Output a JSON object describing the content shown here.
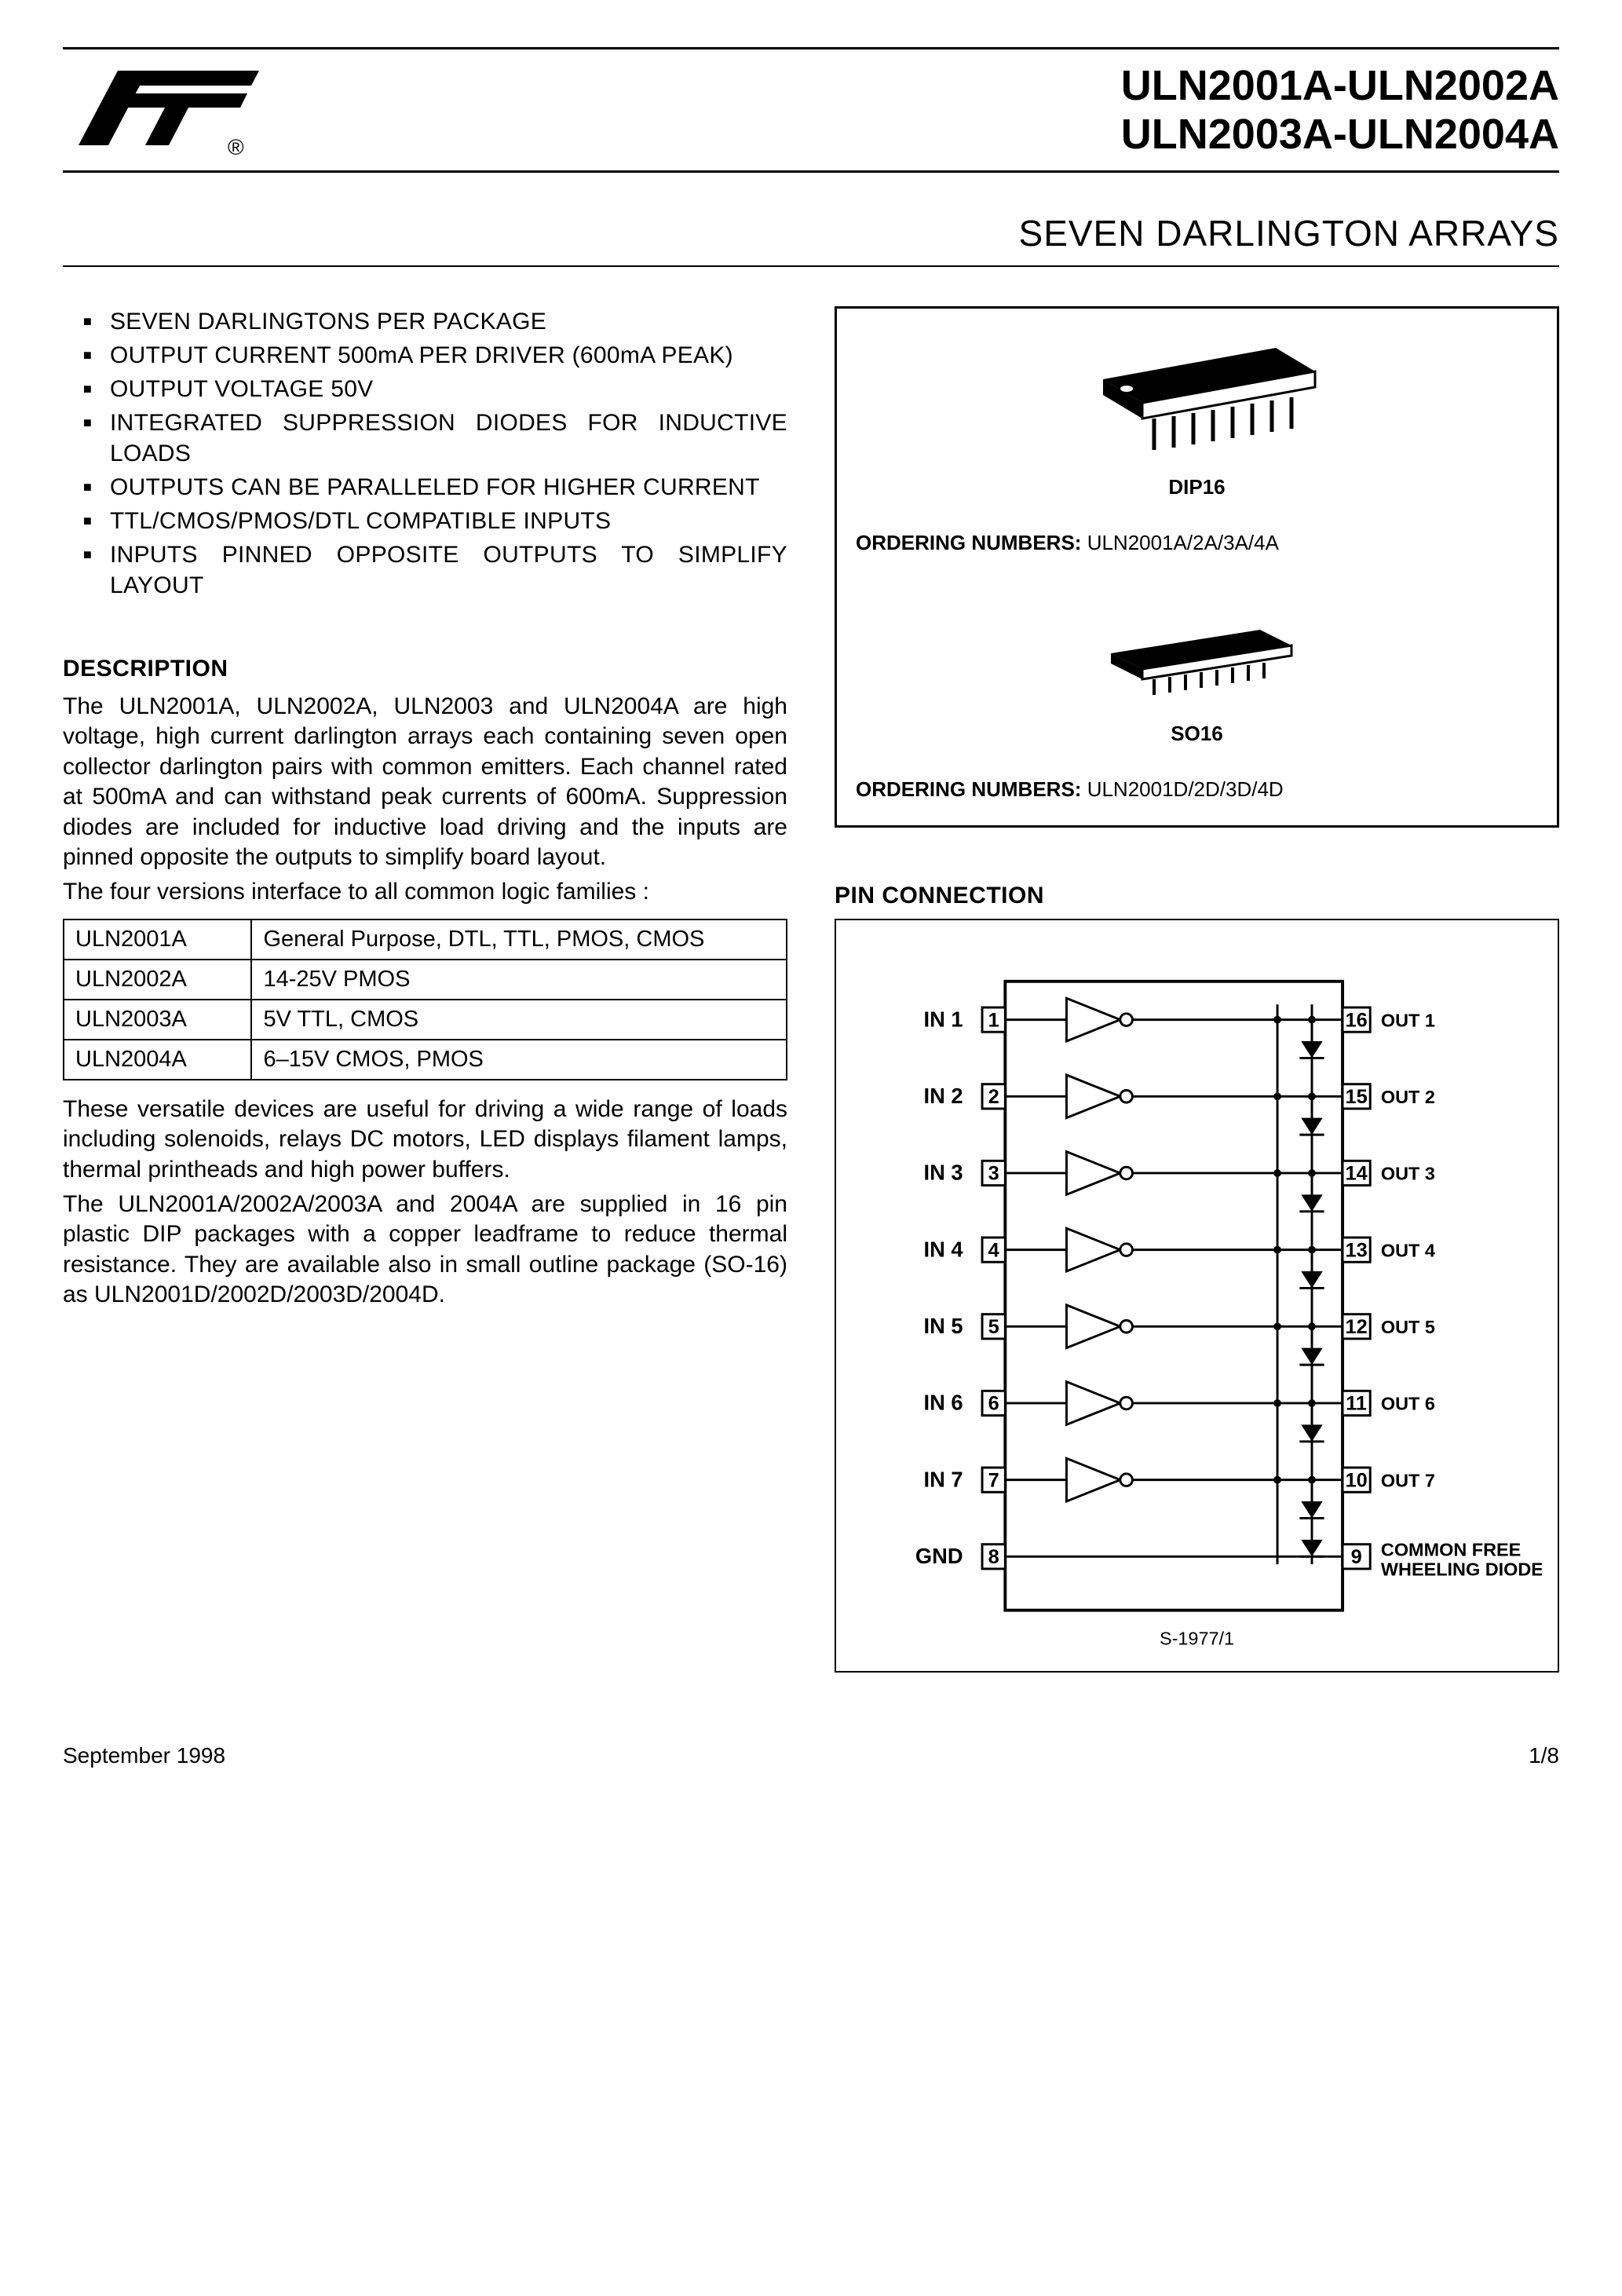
{
  "header": {
    "part_line1": "ULN2001A-ULN2002A",
    "part_line2": "ULN2003A-ULN2004A",
    "subtitle": "SEVEN DARLINGTON ARRAYS"
  },
  "features": [
    "SEVEN DARLINGTONS PER PACKAGE",
    "OUTPUT CURRENT 500mA PER DRIVER (600mA PEAK)",
    "OUTPUT VOLTAGE 50V",
    "INTEGRATED SUPPRESSION DIODES FOR INDUCTIVE LOADS",
    "OUTPUTS CAN BE PARALLELED FOR HIGHER CURRENT",
    "TTL/CMOS/PMOS/DTL COMPATIBLE INPUTS",
    "INPUTS PINNED OPPOSITE OUTPUTS TO SIMPLIFY LAYOUT"
  ],
  "packages": {
    "dip": {
      "name": "DIP16",
      "ordering_label": "ORDERING NUMBERS:",
      "ordering_value": "ULN2001A/2A/3A/4A"
    },
    "so": {
      "name": "SO16",
      "ordering_label": "ORDERING NUMBERS:",
      "ordering_value": "ULN2001D/2D/3D/4D"
    }
  },
  "description": {
    "title": "DESCRIPTION",
    "p1": "The ULN2001A, ULN2002A, ULN2003 and ULN2004A are high voltage, high current darlington arrays each containing seven open collector darlington pairs with common emitters. Each channel rated at 500mA and can withstand peak currents of 600mA. Suppression diodes are included for inductive load driving and the inputs are pinned opposite the outputs to simplify board layout.",
    "p2": "The four versions interface to all common logic families :",
    "p3": "These versatile devices are useful for driving a wide range of loads including solenoids, relays DC motors, LED displays filament lamps, thermal printheads and high power buffers.",
    "p4": "The ULN2001A/2002A/2003A and 2004A are supplied in 16 pin plastic DIP packages with a copper leadframe to reduce thermal resistance. They are available also in small outline package (SO-16) as ULN2001D/2002D/2003D/2004D."
  },
  "compat_table": {
    "rows": [
      [
        "ULN2001A",
        "General Purpose, DTL, TTL, PMOS, CMOS"
      ],
      [
        "ULN2002A",
        "14-25V PMOS"
      ],
      [
        "ULN2003A",
        "5V TTL, CMOS"
      ],
      [
        "ULN2004A",
        "6–15V CMOS, PMOS"
      ]
    ]
  },
  "pin_connection": {
    "title": "PIN CONNECTION",
    "left_labels": [
      "IN 1",
      "IN 2",
      "IN 3",
      "IN 4",
      "IN 5",
      "IN 6",
      "IN 7",
      "GND"
    ],
    "left_pins": [
      "1",
      "2",
      "3",
      "4",
      "5",
      "6",
      "7",
      "8"
    ],
    "right_pins": [
      "16",
      "15",
      "14",
      "13",
      "12",
      "11",
      "10",
      "9"
    ],
    "right_labels": [
      "OUT 1",
      "OUT 2",
      "OUT 3",
      "OUT 4",
      "OUT 5",
      "OUT 6",
      "OUT 7",
      "COMMON FREE\nWHEELING DIODES"
    ],
    "drawing_ref": "S-1977/1"
  },
  "footer": {
    "date": "September 1998",
    "page": "1/8"
  },
  "colors": {
    "text": "#000000",
    "bg": "#ffffff",
    "line": "#000000"
  }
}
